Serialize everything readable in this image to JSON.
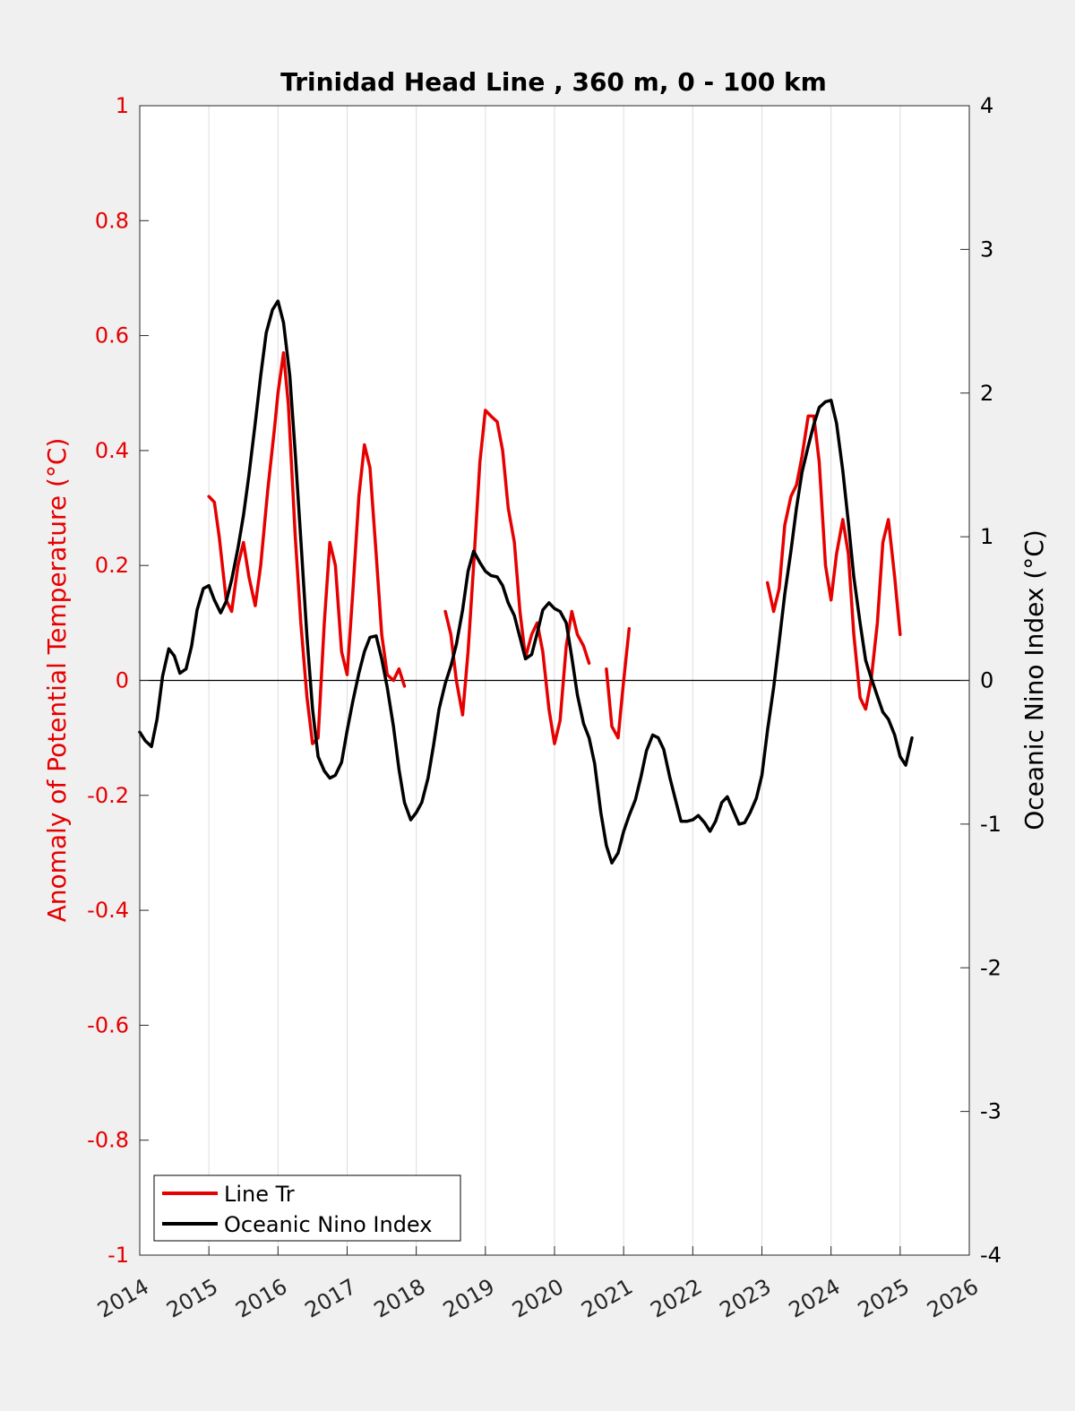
{
  "chart_data": {
    "type": "line",
    "title": "Trinidad Head Line , 360 m, 0 - 100 km",
    "xlabel": "",
    "ylabel_left": "Anomaly of Potential Temperature (°C)",
    "ylabel_right": "Oceanic Nino Index (°C)",
    "xlim": [
      2014,
      2026
    ],
    "ylim_left": [
      -1,
      1
    ],
    "ylim_right": [
      -4,
      4
    ],
    "grid": "vertical",
    "legend_position": "bottom-left",
    "x_ticks": [
      "2014",
      "2015",
      "2016",
      "2017",
      "2018",
      "2019",
      "2020",
      "2021",
      "2022",
      "2023",
      "2024",
      "2025",
      "2026"
    ],
    "y_ticks_left": [
      "1",
      "0.8",
      "0.6",
      "0.4",
      "0.2",
      "0",
      "-0.2",
      "-0.4",
      "-0.6",
      "-0.8",
      "-1"
    ],
    "y_ticks_right": [
      "4",
      "3",
      "2",
      "1",
      "0",
      "-1",
      "-2",
      "-3",
      "-4"
    ],
    "colors": {
      "line_tr": "#e60000",
      "oni": "#000000",
      "left_axis": "#e60000",
      "right_axis": "#000000"
    },
    "series": [
      {
        "name": "Line Tr",
        "axis": "left",
        "color": "#e60000",
        "segments": [
          [
            [
              2015.0,
              0.32
            ],
            [
              2015.08,
              0.31
            ],
            [
              2015.15,
              0.25
            ],
            [
              2015.25,
              0.14
            ],
            [
              2015.33,
              0.12
            ],
            [
              2015.42,
              0.2
            ],
            [
              2015.5,
              0.24
            ],
            [
              2015.58,
              0.18
            ],
            [
              2015.67,
              0.13
            ],
            [
              2015.75,
              0.2
            ],
            [
              2015.85,
              0.33
            ],
            [
              2015.95,
              0.44
            ],
            [
              2016.0,
              0.5
            ],
            [
              2016.08,
              0.57
            ],
            [
              2016.15,
              0.48
            ],
            [
              2016.25,
              0.25
            ],
            [
              2016.33,
              0.1
            ],
            [
              2016.42,
              -0.03
            ],
            [
              2016.5,
              -0.11
            ],
            [
              2016.58,
              -0.1
            ],
            [
              2016.67,
              0.1
            ],
            [
              2016.75,
              0.24
            ],
            [
              2016.83,
              0.2
            ],
            [
              2016.92,
              0.05
            ],
            [
              2017.0,
              0.01
            ],
            [
              2017.08,
              0.15
            ],
            [
              2017.17,
              0.32
            ],
            [
              2017.25,
              0.41
            ],
            [
              2017.33,
              0.37
            ],
            [
              2017.42,
              0.22
            ],
            [
              2017.5,
              0.08
            ],
            [
              2017.58,
              0.01
            ],
            [
              2017.67,
              0.0
            ],
            [
              2017.75,
              0.02
            ],
            [
              2017.83,
              -0.01
            ]
          ],
          [
            [
              2018.42,
              0.12
            ],
            [
              2018.5,
              0.08
            ],
            [
              2018.58,
              0.0
            ],
            [
              2018.67,
              -0.06
            ],
            [
              2018.75,
              0.05
            ],
            [
              2018.83,
              0.2
            ],
            [
              2018.92,
              0.38
            ],
            [
              2019.0,
              0.47
            ],
            [
              2019.08,
              0.46
            ],
            [
              2019.17,
              0.45
            ],
            [
              2019.25,
              0.4
            ],
            [
              2019.33,
              0.3
            ],
            [
              2019.42,
              0.24
            ],
            [
              2019.5,
              0.12
            ],
            [
              2019.58,
              0.04
            ],
            [
              2019.67,
              0.08
            ],
            [
              2019.75,
              0.1
            ],
            [
              2019.83,
              0.05
            ],
            [
              2019.92,
              -0.05
            ],
            [
              2020.0,
              -0.11
            ],
            [
              2020.08,
              -0.07
            ],
            [
              2020.17,
              0.06
            ],
            [
              2020.25,
              0.12
            ],
            [
              2020.33,
              0.08
            ],
            [
              2020.42,
              0.06
            ],
            [
              2020.5,
              0.03
            ]
          ],
          [
            [
              2020.75,
              0.02
            ],
            [
              2020.83,
              -0.08
            ],
            [
              2020.92,
              -0.1
            ],
            [
              2021.0,
              0.0
            ],
            [
              2021.08,
              0.09
            ]
          ],
          [
            [
              2023.08,
              0.17
            ],
            [
              2023.17,
              0.12
            ],
            [
              2023.25,
              0.16
            ],
            [
              2023.33,
              0.27
            ],
            [
              2023.42,
              0.32
            ],
            [
              2023.5,
              0.34
            ],
            [
              2023.58,
              0.39
            ],
            [
              2023.67,
              0.46
            ],
            [
              2023.75,
              0.46
            ],
            [
              2023.83,
              0.38
            ],
            [
              2023.92,
              0.2
            ],
            [
              2024.0,
              0.14
            ],
            [
              2024.08,
              0.22
            ],
            [
              2024.17,
              0.28
            ],
            [
              2024.25,
              0.22
            ],
            [
              2024.33,
              0.08
            ],
            [
              2024.42,
              -0.03
            ],
            [
              2024.5,
              -0.05
            ],
            [
              2024.58,
              0.0
            ],
            [
              2024.67,
              0.1
            ],
            [
              2024.75,
              0.24
            ],
            [
              2024.83,
              0.28
            ],
            [
              2024.92,
              0.18
            ],
            [
              2025.0,
              0.08
            ]
          ]
        ]
      },
      {
        "name": "Oceanic Nino Index",
        "axis": "right",
        "color": "#000000",
        "segments": [
          [
            [
              2014.0,
              -0.36
            ],
            [
              2014.08,
              -0.42
            ],
            [
              2014.17,
              -0.46
            ],
            [
              2014.25,
              -0.27
            ],
            [
              2014.33,
              0.03
            ],
            [
              2014.42,
              0.22
            ],
            [
              2014.5,
              0.17
            ],
            [
              2014.58,
              0.05
            ],
            [
              2014.67,
              0.08
            ],
            [
              2014.75,
              0.24
            ],
            [
              2014.83,
              0.49
            ],
            [
              2014.92,
              0.64
            ],
            [
              2015.0,
              0.66
            ],
            [
              2015.08,
              0.56
            ],
            [
              2015.17,
              0.47
            ],
            [
              2015.25,
              0.55
            ],
            [
              2015.33,
              0.7
            ],
            [
              2015.42,
              0.92
            ],
            [
              2015.5,
              1.15
            ],
            [
              2015.58,
              1.43
            ],
            [
              2015.67,
              1.79
            ],
            [
              2015.75,
              2.12
            ],
            [
              2015.83,
              2.42
            ],
            [
              2015.92,
              2.58
            ],
            [
              2016.0,
              2.64
            ],
            [
              2016.08,
              2.49
            ],
            [
              2016.17,
              2.12
            ],
            [
              2016.25,
              1.58
            ],
            [
              2016.33,
              0.98
            ],
            [
              2016.42,
              0.3
            ],
            [
              2016.5,
              -0.2
            ],
            [
              2016.58,
              -0.53
            ],
            [
              2016.67,
              -0.63
            ],
            [
              2016.75,
              -0.68
            ],
            [
              2016.83,
              -0.66
            ],
            [
              2016.92,
              -0.57
            ],
            [
              2017.0,
              -0.35
            ],
            [
              2017.08,
              -0.15
            ],
            [
              2017.17,
              0.05
            ],
            [
              2017.25,
              0.2
            ],
            [
              2017.33,
              0.3
            ],
            [
              2017.42,
              0.31
            ],
            [
              2017.5,
              0.15
            ],
            [
              2017.58,
              -0.05
            ],
            [
              2017.67,
              -0.32
            ],
            [
              2017.75,
              -0.62
            ],
            [
              2017.83,
              -0.85
            ],
            [
              2017.92,
              -0.97
            ],
            [
              2018.0,
              -0.92
            ],
            [
              2018.08,
              -0.85
            ],
            [
              2018.17,
              -0.68
            ],
            [
              2018.25,
              -0.45
            ],
            [
              2018.33,
              -0.2
            ],
            [
              2018.42,
              -0.02
            ],
            [
              2018.5,
              0.1
            ],
            [
              2018.58,
              0.25
            ],
            [
              2018.67,
              0.49
            ],
            [
              2018.75,
              0.76
            ],
            [
              2018.83,
              0.9
            ],
            [
              2018.92,
              0.82
            ],
            [
              2019.0,
              0.76
            ],
            [
              2019.08,
              0.73
            ],
            [
              2019.17,
              0.72
            ],
            [
              2019.25,
              0.66
            ],
            [
              2019.33,
              0.54
            ],
            [
              2019.42,
              0.45
            ],
            [
              2019.5,
              0.3
            ],
            [
              2019.58,
              0.15
            ],
            [
              2019.67,
              0.18
            ],
            [
              2019.75,
              0.33
            ],
            [
              2019.83,
              0.49
            ],
            [
              2019.92,
              0.54
            ],
            [
              2020.0,
              0.5
            ],
            [
              2020.08,
              0.48
            ],
            [
              2020.17,
              0.4
            ],
            [
              2020.25,
              0.16
            ],
            [
              2020.33,
              -0.1
            ],
            [
              2020.42,
              -0.3
            ],
            [
              2020.5,
              -0.4
            ],
            [
              2020.58,
              -0.58
            ],
            [
              2020.67,
              -0.92
            ],
            [
              2020.75,
              -1.15
            ],
            [
              2020.83,
              -1.27
            ],
            [
              2020.92,
              -1.2
            ],
            [
              2021.0,
              -1.05
            ],
            [
              2021.08,
              -0.94
            ],
            [
              2021.17,
              -0.83
            ],
            [
              2021.25,
              -0.67
            ],
            [
              2021.33,
              -0.49
            ],
            [
              2021.42,
              -0.38
            ],
            [
              2021.5,
              -0.4
            ],
            [
              2021.58,
              -0.48
            ],
            [
              2021.67,
              -0.68
            ],
            [
              2021.75,
              -0.83
            ],
            [
              2021.83,
              -0.98
            ],
            [
              2021.92,
              -0.98
            ],
            [
              2022.0,
              -0.97
            ],
            [
              2022.08,
              -0.94
            ],
            [
              2022.17,
              -0.99
            ],
            [
              2022.25,
              -1.05
            ],
            [
              2022.33,
              -0.98
            ],
            [
              2022.42,
              -0.85
            ],
            [
              2022.5,
              -0.81
            ],
            [
              2022.58,
              -0.9
            ],
            [
              2022.67,
              -1.0
            ],
            [
              2022.75,
              -0.99
            ],
            [
              2022.83,
              -0.92
            ],
            [
              2022.92,
              -0.82
            ],
            [
              2023.0,
              -0.66
            ],
            [
              2023.08,
              -0.35
            ],
            [
              2023.17,
              -0.05
            ],
            [
              2023.25,
              0.27
            ],
            [
              2023.33,
              0.6
            ],
            [
              2023.42,
              0.9
            ],
            [
              2023.5,
              1.2
            ],
            [
              2023.58,
              1.45
            ],
            [
              2023.67,
              1.63
            ],
            [
              2023.75,
              1.78
            ],
            [
              2023.83,
              1.9
            ],
            [
              2023.92,
              1.94
            ],
            [
              2024.0,
              1.95
            ],
            [
              2024.08,
              1.79
            ],
            [
              2024.17,
              1.46
            ],
            [
              2024.25,
              1.1
            ],
            [
              2024.33,
              0.72
            ],
            [
              2024.42,
              0.4
            ],
            [
              2024.5,
              0.14
            ],
            [
              2024.58,
              0.02
            ],
            [
              2024.67,
              -0.11
            ],
            [
              2024.75,
              -0.22
            ],
            [
              2024.83,
              -0.27
            ],
            [
              2024.92,
              -0.38
            ],
            [
              2025.0,
              -0.53
            ],
            [
              2025.08,
              -0.59
            ],
            [
              2025.17,
              -0.4
            ]
          ]
        ]
      }
    ]
  }
}
